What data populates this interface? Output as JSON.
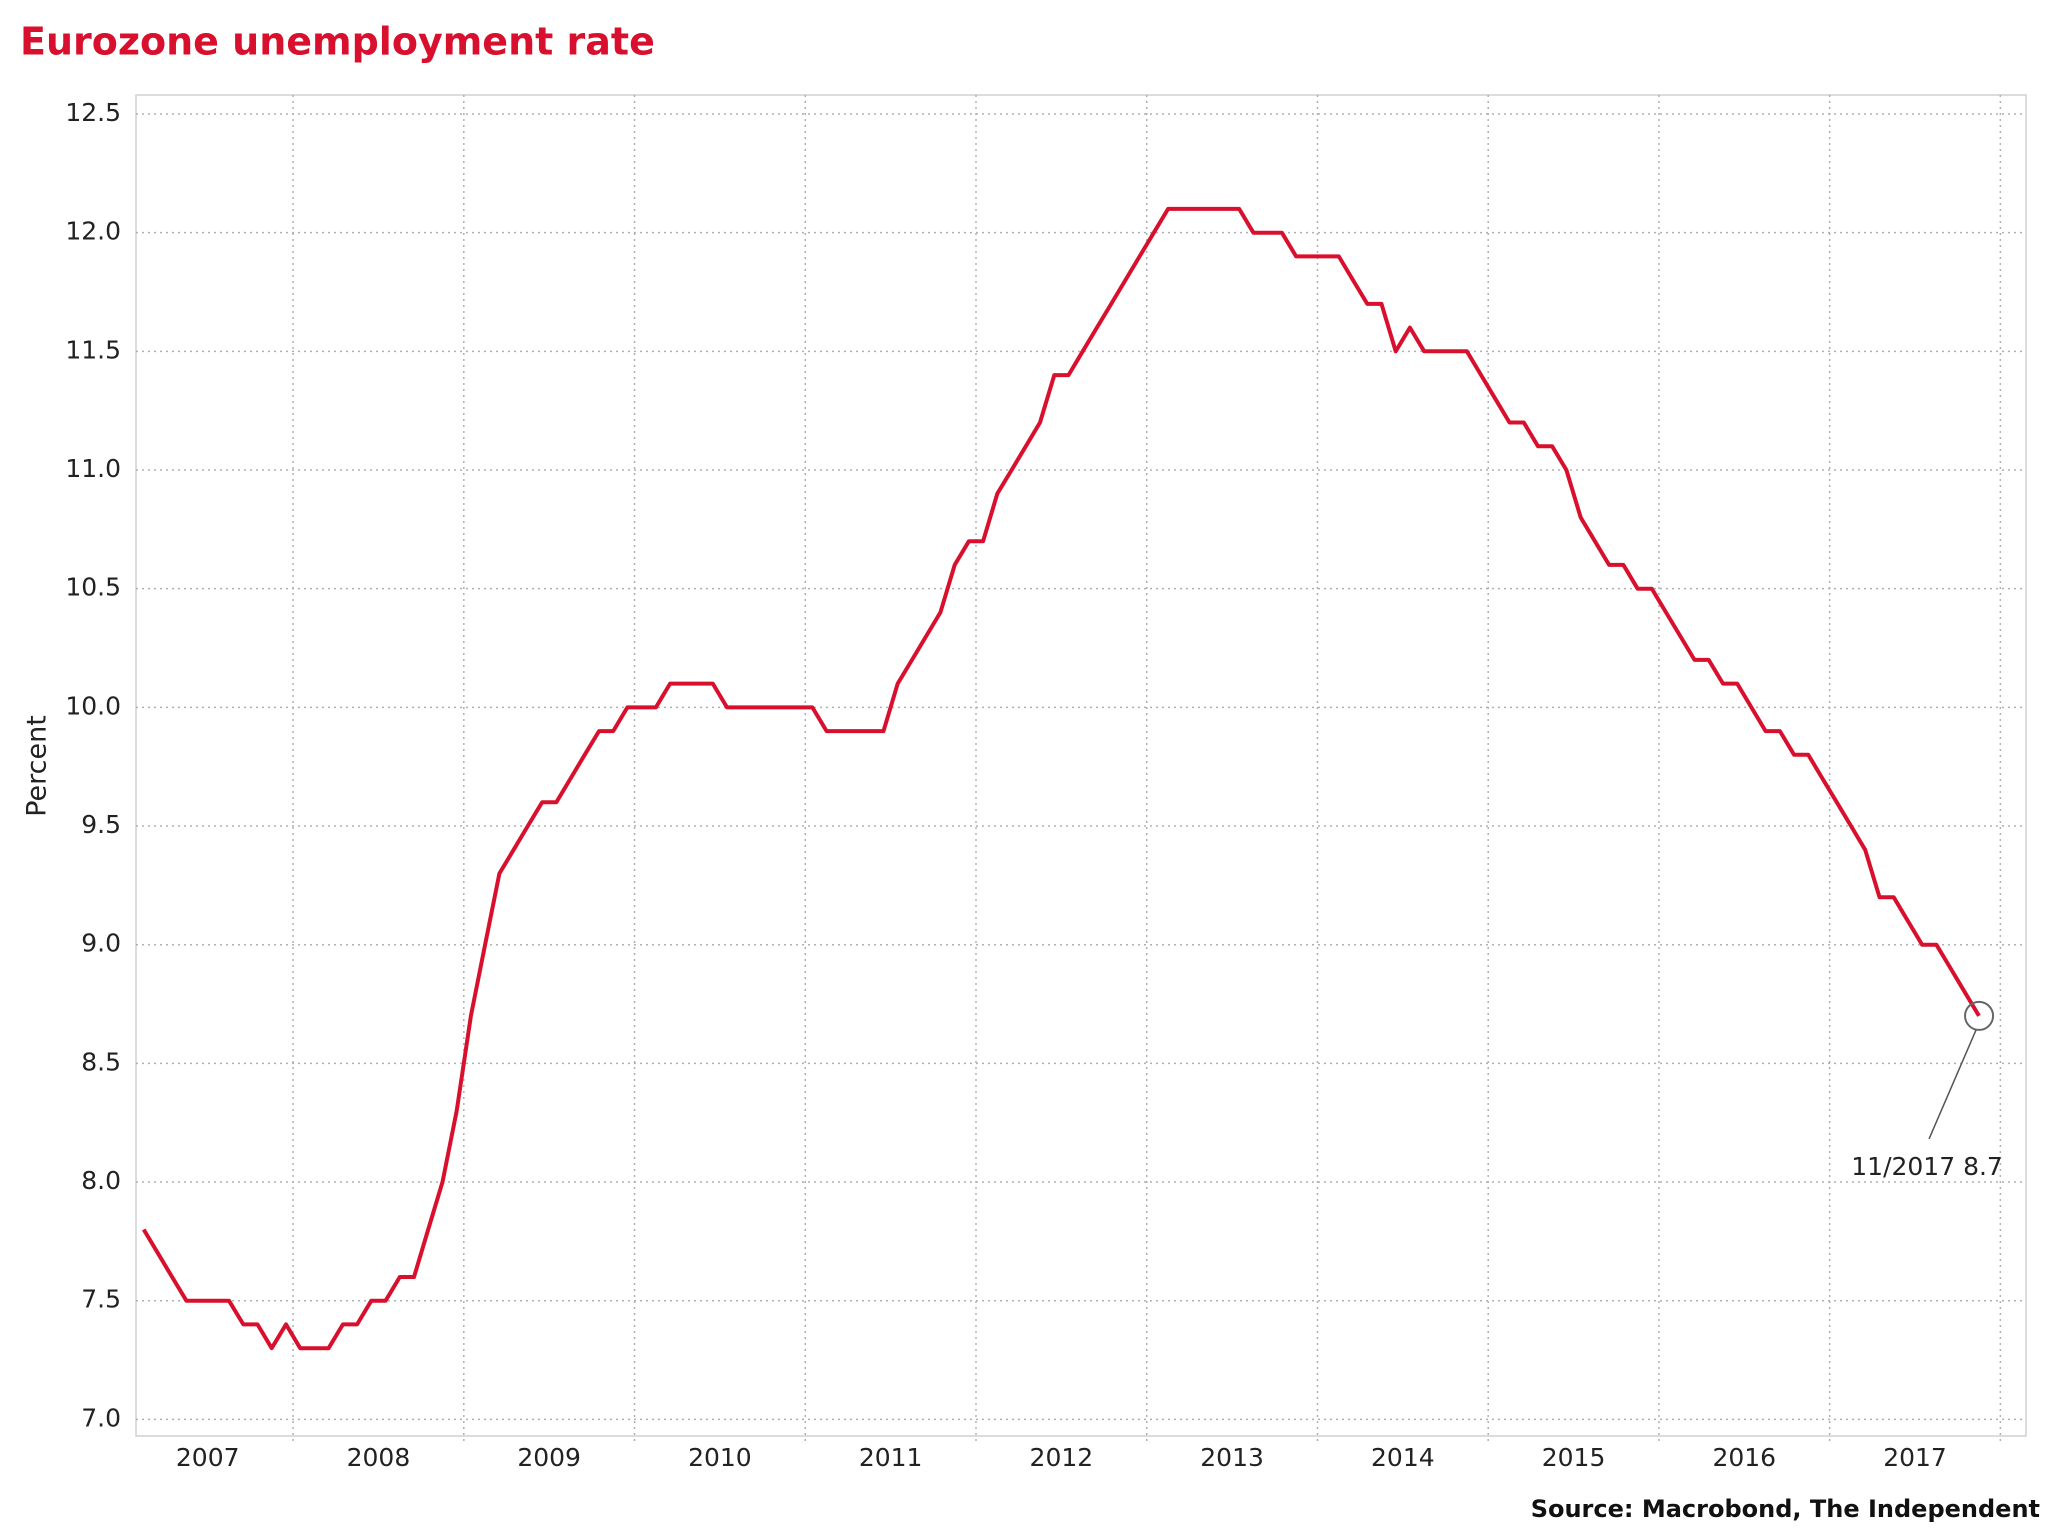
{
  "chart_data": {
    "type": "line",
    "title": "Eurozone unemployment rate",
    "y_label": "Percent",
    "source": "Source: Macrobond, The Independent",
    "annotation": "11/2017 8.7",
    "x": [
      "2007-02",
      "2007-03",
      "2007-04",
      "2007-05",
      "2007-06",
      "2007-07",
      "2007-08",
      "2007-09",
      "2007-10",
      "2007-11",
      "2007-12",
      "2008-01",
      "2008-02",
      "2008-03",
      "2008-04",
      "2008-05",
      "2008-06",
      "2008-07",
      "2008-08",
      "2008-09",
      "2008-10",
      "2008-11",
      "2008-12",
      "2009-01",
      "2009-02",
      "2009-03",
      "2009-04",
      "2009-05",
      "2009-06",
      "2009-07",
      "2009-08",
      "2009-09",
      "2009-10",
      "2009-11",
      "2009-12",
      "2010-01",
      "2010-02",
      "2010-03",
      "2010-04",
      "2010-05",
      "2010-06",
      "2010-07",
      "2010-08",
      "2010-09",
      "2010-10",
      "2010-11",
      "2010-12",
      "2011-01",
      "2011-02",
      "2011-03",
      "2011-04",
      "2011-05",
      "2011-06",
      "2011-07",
      "2011-08",
      "2011-09",
      "2011-10",
      "2011-11",
      "2011-12",
      "2012-01",
      "2012-02",
      "2012-03",
      "2012-04",
      "2012-05",
      "2012-06",
      "2012-07",
      "2012-08",
      "2012-09",
      "2012-10",
      "2012-11",
      "2012-12",
      "2013-01",
      "2013-02",
      "2013-03",
      "2013-04",
      "2013-05",
      "2013-06",
      "2013-07",
      "2013-08",
      "2013-09",
      "2013-10",
      "2013-11",
      "2013-12",
      "2014-01",
      "2014-02",
      "2014-03",
      "2014-04",
      "2014-05",
      "2014-06",
      "2014-07",
      "2014-08",
      "2014-09",
      "2014-10",
      "2014-11",
      "2014-12",
      "2015-01",
      "2015-02",
      "2015-03",
      "2015-04",
      "2015-05",
      "2015-06",
      "2015-07",
      "2015-08",
      "2015-09",
      "2015-10",
      "2015-11",
      "2015-12",
      "2016-01",
      "2016-02",
      "2016-03",
      "2016-04",
      "2016-05",
      "2016-06",
      "2016-07",
      "2016-08",
      "2016-09",
      "2016-10",
      "2016-11",
      "2016-12",
      "2017-01",
      "2017-02",
      "2017-03",
      "2017-04",
      "2017-05",
      "2017-06",
      "2017-07",
      "2017-08",
      "2017-09",
      "2017-10",
      "2017-11"
    ],
    "series": [
      {
        "name": "Eurozone unemployment rate",
        "color": "#d8102e",
        "values": [
          7.8,
          7.7,
          7.6,
          7.5,
          7.5,
          7.5,
          7.5,
          7.4,
          7.4,
          7.3,
          7.4,
          7.3,
          7.3,
          7.3,
          7.4,
          7.4,
          7.5,
          7.5,
          7.6,
          7.6,
          7.8,
          8.0,
          8.3,
          8.7,
          9.0,
          9.3,
          9.4,
          9.5,
          9.6,
          9.6,
          9.7,
          9.8,
          9.9,
          9.9,
          10.0,
          10.0,
          10.0,
          10.1,
          10.1,
          10.1,
          10.1,
          10.0,
          10.0,
          10.0,
          10.0,
          10.0,
          10.0,
          10.0,
          9.9,
          9.9,
          9.9,
          9.9,
          9.9,
          10.1,
          10.2,
          10.3,
          10.4,
          10.6,
          10.7,
          10.7,
          10.9,
          11.0,
          11.1,
          11.2,
          11.4,
          11.4,
          11.5,
          11.6,
          11.7,
          11.8,
          11.9,
          12.0,
          12.1,
          12.1,
          12.1,
          12.1,
          12.1,
          12.1,
          12.0,
          12.0,
          12.0,
          11.9,
          11.9,
          11.9,
          11.9,
          11.8,
          11.7,
          11.7,
          11.5,
          11.6,
          11.5,
          11.5,
          11.5,
          11.5,
          11.4,
          11.3,
          11.2,
          11.2,
          11.1,
          11.1,
          11.0,
          10.8,
          10.7,
          10.6,
          10.6,
          10.5,
          10.5,
          10.4,
          10.3,
          10.2,
          10.2,
          10.1,
          10.1,
          10.0,
          9.9,
          9.9,
          9.8,
          9.8,
          9.7,
          9.6,
          9.5,
          9.4,
          9.2,
          9.2,
          9.1,
          9.0,
          9.0,
          8.9,
          8.8,
          8.7
        ]
      }
    ],
    "xlim": [
      2007.08,
      2018.15
    ],
    "xticks": [
      {
        "value": 2007.5,
        "label": "2007"
      },
      {
        "value": 2008.5,
        "label": "2008"
      },
      {
        "value": 2009.5,
        "label": "2009"
      },
      {
        "value": 2010.5,
        "label": "2010"
      },
      {
        "value": 2011.5,
        "label": "2011"
      },
      {
        "value": 2012.5,
        "label": "2012"
      },
      {
        "value": 2013.5,
        "label": "2013"
      },
      {
        "value": 2014.5,
        "label": "2014"
      },
      {
        "value": 2015.5,
        "label": "2015"
      },
      {
        "value": 2016.5,
        "label": "2016"
      },
      {
        "value": 2017.5,
        "label": "2017"
      }
    ],
    "xgrid": [
      2008,
      2009,
      2010,
      2011,
      2012,
      2013,
      2014,
      2015,
      2016,
      2017,
      2018
    ],
    "ylim": [
      6.93,
      12.58
    ],
    "yticks": [
      {
        "value": 7,
        "label": "7.0"
      },
      {
        "value": 7.5,
        "label": "7.5"
      },
      {
        "value": 8,
        "label": "8.0"
      },
      {
        "value": 8.5,
        "label": "8.5"
      },
      {
        "value": 9,
        "label": "9.0"
      },
      {
        "value": 9.5,
        "label": "9.5"
      },
      {
        "value": 10,
        "label": "10.0"
      },
      {
        "value": 10.5,
        "label": "10.5"
      },
      {
        "value": 11,
        "label": "11.0"
      },
      {
        "value": 11.5,
        "label": "11.5"
      },
      {
        "value": 12,
        "label": "12.0"
      },
      {
        "value": 12.5,
        "label": "12.5"
      }
    ],
    "grid": true
  }
}
